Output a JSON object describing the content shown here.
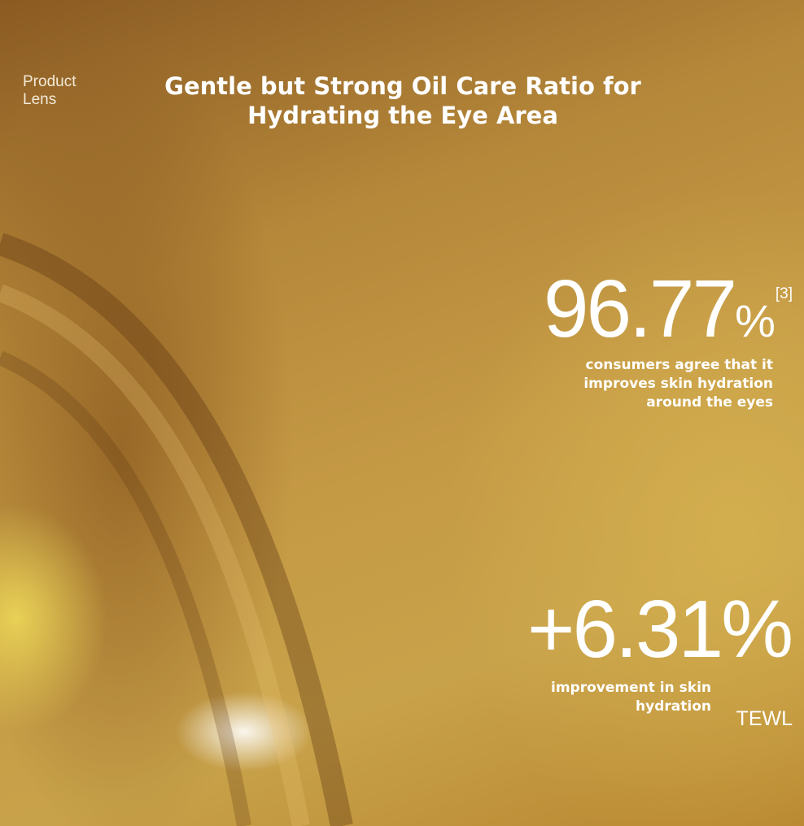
{
  "brand": {
    "line1": "Product",
    "line2": "Lens"
  },
  "title": {
    "line1": "Gentle but Strong Oil Care Ratio for",
    "line2": "Hydrating the Eye Area"
  },
  "stat1": {
    "value": "96.77",
    "unit": "%",
    "ref": "[3]",
    "desc": [
      "consumers agree that it",
      "improves skin hydration",
      "around the eyes"
    ]
  },
  "stat2": {
    "value": "+6.31%",
    "desc": [
      "improvement in skin",
      "hydration"
    ],
    "tag": "TEWL"
  },
  "colors": {
    "background": "#c59a45",
    "text": "#ffffff"
  }
}
